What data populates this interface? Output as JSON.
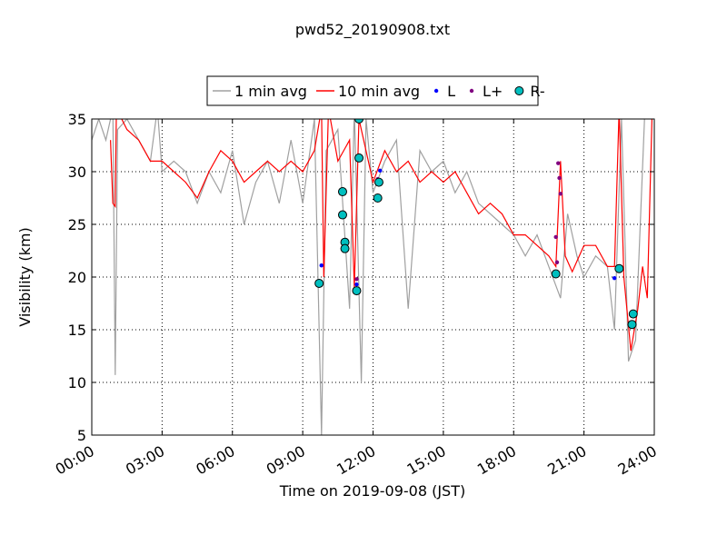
{
  "chart_data": {
    "type": "line",
    "title": "pwd52_20190908.txt",
    "x_label": "Time on 2019-09-08 (JST)",
    "y_label": "Visibility (km)",
    "xlim": [
      0,
      24
    ],
    "xticks": [
      {
        "value": 0,
        "label": "00:00"
      },
      {
        "value": 3,
        "label": "03:00"
      },
      {
        "value": 6,
        "label": "06:00"
      },
      {
        "value": 9,
        "label": "09:00"
      },
      {
        "value": 12,
        "label": "12:00"
      },
      {
        "value": 15,
        "label": "15:00"
      },
      {
        "value": 18,
        "label": "18:00"
      },
      {
        "value": 21,
        "label": "21:00"
      },
      {
        "value": 24,
        "label": "24:00"
      }
    ],
    "ylim": [
      5,
      35
    ],
    "yticks": [
      5,
      10,
      15,
      20,
      25,
      30,
      35
    ],
    "grid": true,
    "legend": "top",
    "series": [
      {
        "name": "1 min avg",
        "type": "line",
        "color": "#a0a0a0",
        "x": [
          0,
          0.3,
          0.6,
          0.9,
          1.0,
          1.1,
          1.5,
          2,
          2.5,
          2.8,
          3,
          3.5,
          4,
          4.5,
          5,
          5.5,
          6,
          6.5,
          7,
          7.5,
          8,
          8.5,
          9,
          9.5,
          9.8,
          10,
          10.5,
          11,
          11.2,
          11.5,
          11.7,
          12,
          12.5,
          13,
          13.5,
          14,
          14.5,
          15,
          15.5,
          16,
          16.5,
          17,
          17.5,
          18,
          18.5,
          19,
          19.5,
          20,
          20.3,
          20.7,
          21,
          21.5,
          22,
          22.3,
          22.6,
          22.9,
          23.2,
          23.6,
          24
        ],
        "values": [
          33,
          35,
          33,
          36,
          10.7,
          34,
          35,
          33,
          31,
          36,
          30,
          31,
          30,
          27,
          30,
          28,
          32,
          25,
          29,
          31,
          27,
          33,
          27,
          35,
          5,
          32,
          34,
          17,
          36,
          10,
          35,
          28,
          31,
          33,
          17,
          32,
          30,
          31,
          28,
          30,
          27,
          26,
          25,
          24,
          22,
          24,
          21,
          18,
          26,
          22,
          20,
          22,
          21,
          15,
          35,
          12,
          14,
          36,
          35
        ]
      },
      {
        "name": "10 min avg",
        "type": "line",
        "color": "#ff0000",
        "x": [
          0.8,
          0.9,
          1.0,
          1.05,
          1.5,
          2,
          2.5,
          3,
          3.5,
          4,
          4.5,
          5,
          5.5,
          6,
          6.5,
          7,
          7.5,
          8,
          8.5,
          9,
          9.5,
          9.8,
          9.9,
          10.1,
          10.5,
          11,
          11.2,
          11.4,
          12,
          12.5,
          13,
          13.5,
          14,
          14.5,
          15,
          15.5,
          16,
          16.5,
          17,
          17.5,
          18,
          18.5,
          19,
          19.5,
          19.8,
          20,
          20.2,
          20.5,
          21,
          21.5,
          22,
          22.3,
          22.5,
          22.7,
          23,
          23.3,
          23.5,
          23.7,
          23.9
        ],
        "values": [
          33,
          27,
          26.7,
          36,
          34,
          33,
          31,
          31,
          30,
          29,
          27.5,
          30,
          32,
          31,
          29,
          30,
          31,
          30,
          31,
          30,
          32,
          36,
          20,
          36,
          31,
          33,
          19,
          35,
          29,
          32,
          30,
          31,
          29,
          30,
          29,
          30,
          28,
          26,
          27,
          26,
          24,
          24,
          23,
          22,
          21,
          31,
          22,
          20.5,
          23,
          23,
          21,
          21,
          36,
          20,
          13,
          17,
          21,
          18,
          35
        ]
      },
      {
        "name": "L",
        "type": "scatter",
        "color": "#0000ff",
        "x": [
          9.8,
          11.3,
          12.3,
          19.8,
          22.3
        ],
        "values": [
          21.1,
          19.3,
          30.1,
          20.2,
          19.9
        ]
      },
      {
        "name": "L+",
        "type": "scatter",
        "color": "#800080",
        "x": [
          11.3,
          12.2,
          19.8,
          19.85,
          19.9,
          19.95,
          20
        ],
        "values": [
          19.8,
          29.3,
          23.8,
          21.4,
          30.8,
          29.4,
          27.9
        ]
      },
      {
        "name": "R-",
        "type": "scatter",
        "color": "#00bfbf",
        "x": [
          9.7,
          10.7,
          10.7,
          10.8,
          10.8,
          11.3,
          11.4,
          11.4,
          12.2,
          12.25,
          19.8,
          22.5,
          23.1,
          23.05
        ],
        "values": [
          19.4,
          28.1,
          25.9,
          23.3,
          22.7,
          18.7,
          35,
          31.3,
          27.5,
          29,
          20.3,
          20.8,
          16.5,
          15.5
        ]
      }
    ]
  }
}
